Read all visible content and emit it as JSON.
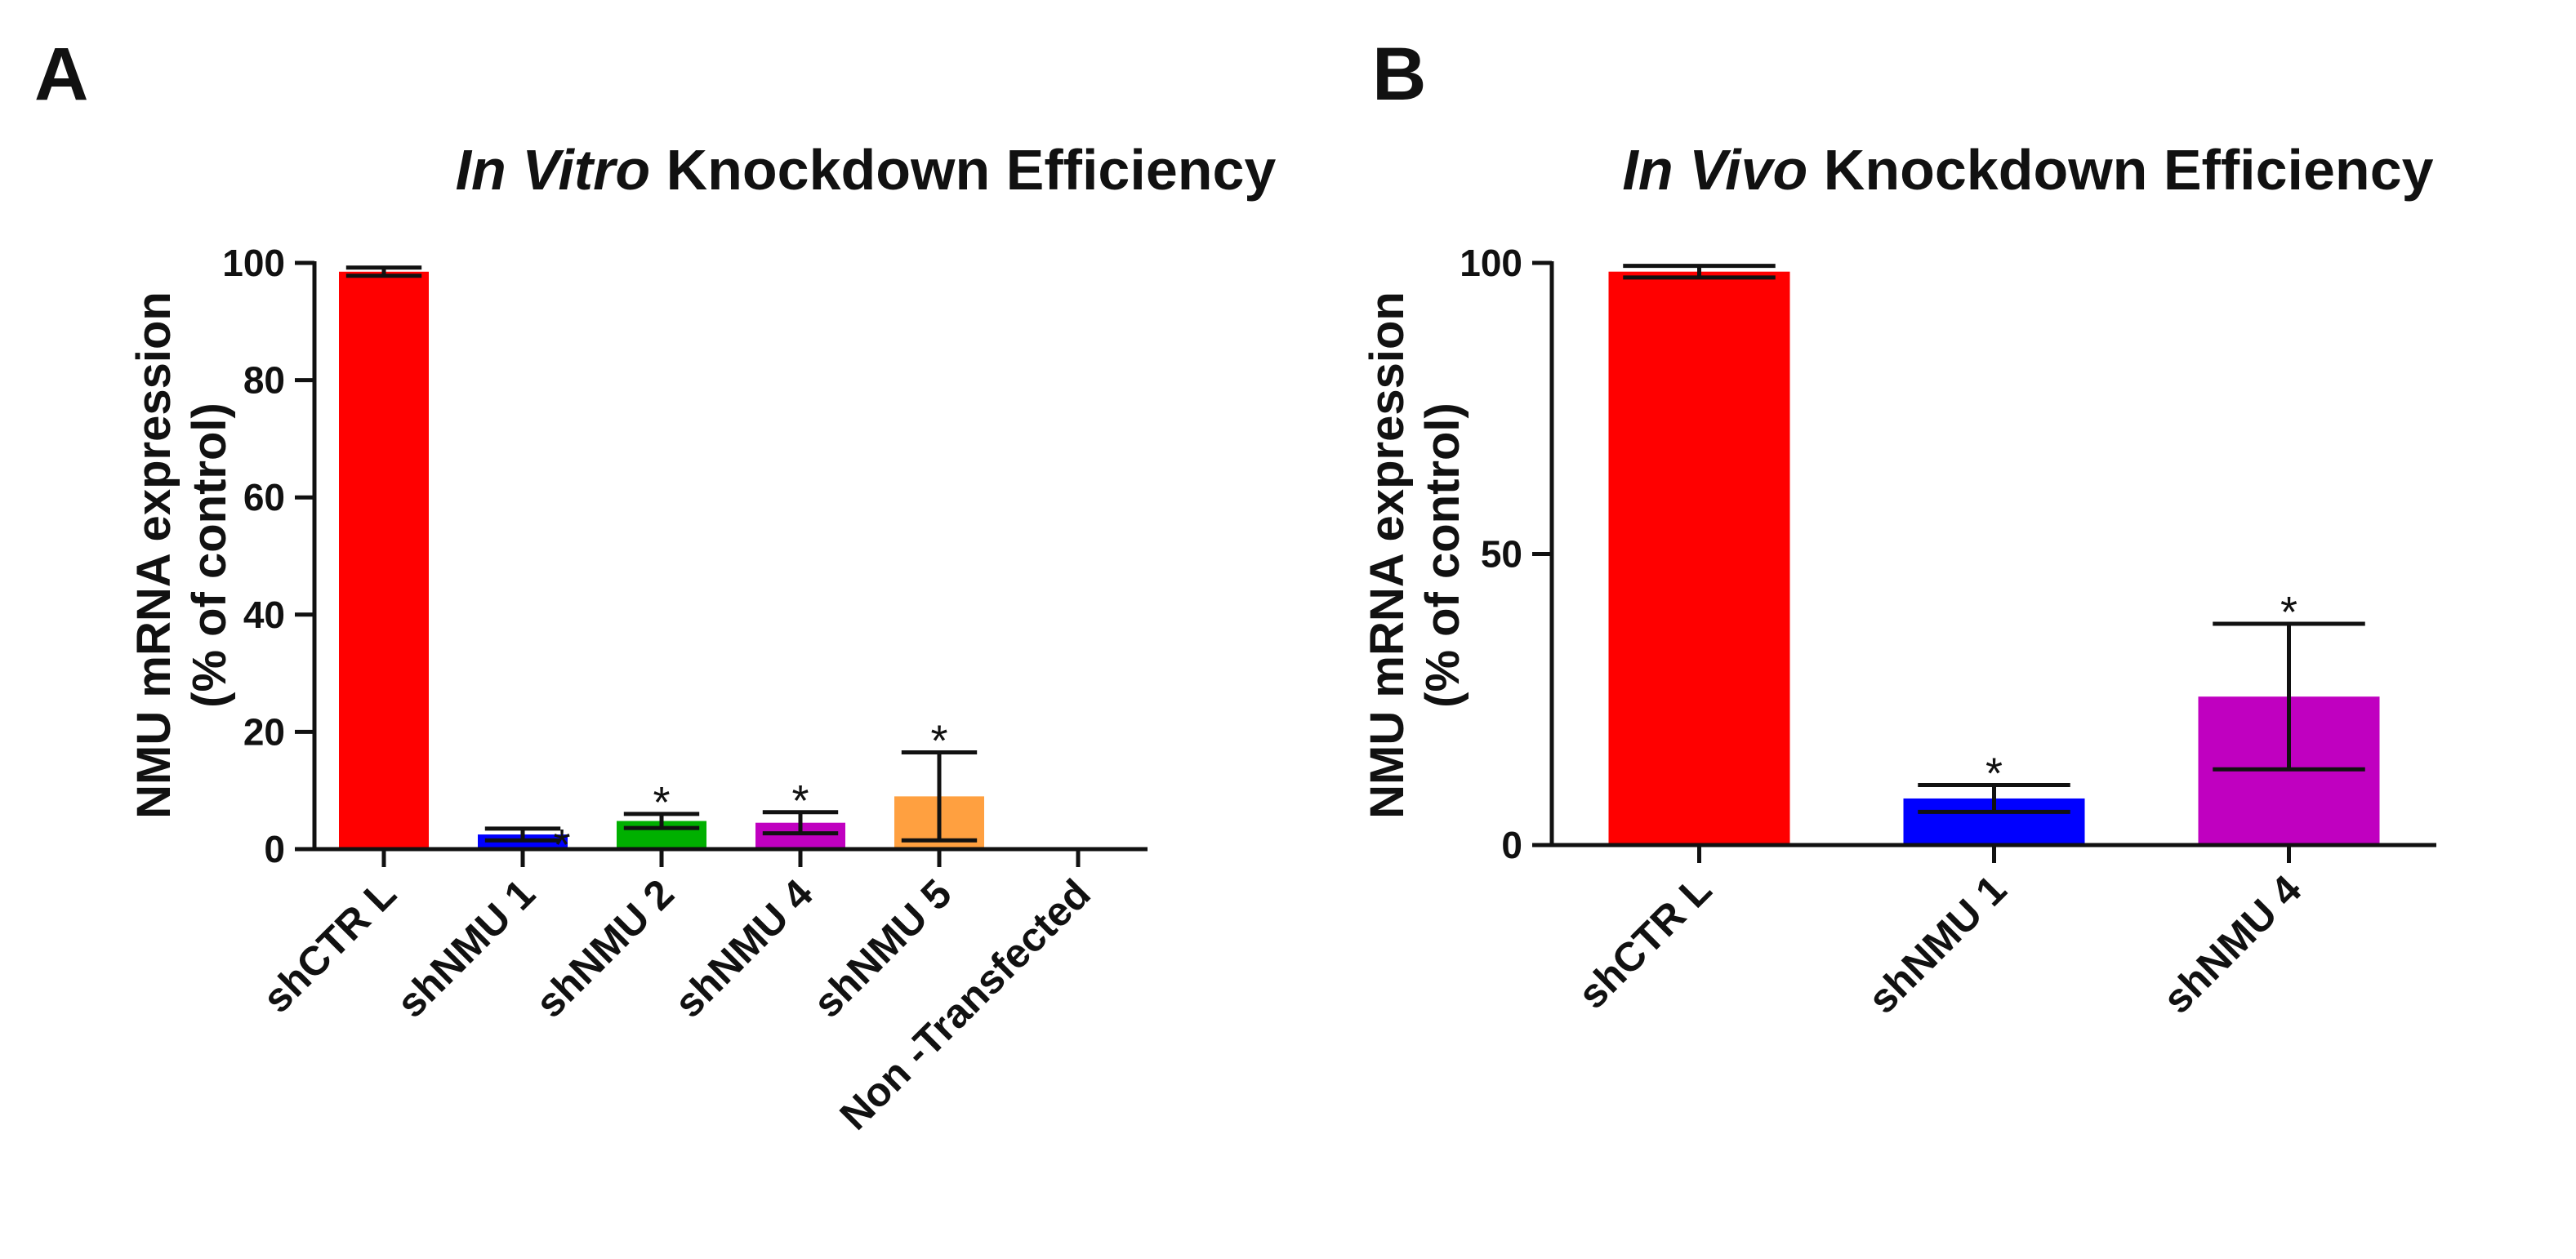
{
  "chart_data": [
    {
      "type": "bar",
      "panel": "A",
      "title_italic": "In Vitro",
      "title_rest": " Knockdown Efficiency",
      "ylabel_line1": "NMU mRNA expression",
      "ylabel_line2": "(% of control)",
      "xlabel": "",
      "ylim": [
        0,
        100
      ],
      "yticks": [
        0,
        20,
        40,
        60,
        80,
        100
      ],
      "categories": [
        "shCTR L",
        "shNMU 1",
        "shNMU 2",
        "shNMU 4",
        "shNMU 5",
        "Non -Transfected"
      ],
      "values": [
        98.5,
        2.5,
        4.8,
        4.5,
        9.0,
        null
      ],
      "errors": [
        0.7,
        1.0,
        1.2,
        1.8,
        7.5,
        null
      ],
      "significance": [
        "",
        "*",
        "*",
        "*",
        "*",
        ""
      ],
      "colors": [
        "#ff0000",
        "#0000ff",
        "#00b000",
        "#c000c0",
        "#ffa040",
        "#ffffff"
      ],
      "grid": false,
      "legend": "none"
    },
    {
      "type": "bar",
      "panel": "B",
      "title_italic": "In Vivo",
      "title_rest": " Knockdown Efficiency",
      "ylabel_line1": "NMU mRNA expression",
      "ylabel_line2": "(% of control)",
      "xlabel": "",
      "ylim": [
        0,
        100
      ],
      "yticks": [
        0,
        50,
        100
      ],
      "categories": [
        "shCTR L",
        "shNMU 1",
        "shNMU 4"
      ],
      "values": [
        98.5,
        8.0,
        25.5
      ],
      "errors": [
        1.0,
        2.3,
        12.5
      ],
      "significance": [
        "",
        "*",
        "*"
      ],
      "colors": [
        "#ff0000",
        "#0000ff",
        "#c000c0"
      ],
      "grid": false,
      "legend": "none"
    }
  ]
}
